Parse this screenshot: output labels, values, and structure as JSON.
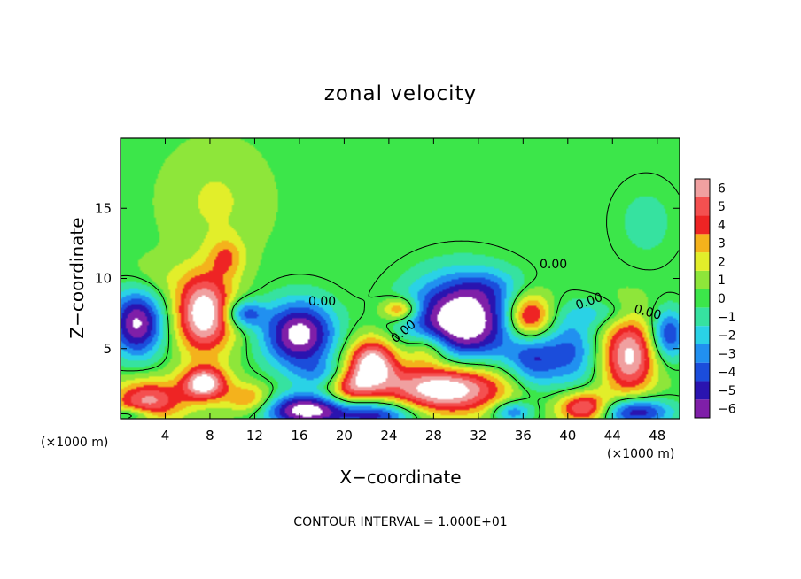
{
  "chart_data": {
    "type": "heatmap",
    "title": "zonal velocity",
    "xlabel": "X−coordinate",
    "ylabel": "Z−coordinate",
    "x_unit_label": "(×1000 m)",
    "y_unit_label": "(×1000 m)",
    "xlim": [
      0,
      50
    ],
    "ylim": [
      0,
      20
    ],
    "x_ticks": [
      4,
      8,
      12,
      16,
      20,
      24,
      28,
      32,
      36,
      40,
      44,
      48
    ],
    "y_ticks": [
      5,
      10,
      15
    ],
    "colorbar": {
      "levels": [
        -6,
        -5,
        -4,
        -3,
        -2,
        -1,
        0,
        1,
        2,
        3,
        4,
        5,
        6
      ],
      "colors": [
        "#7f1fa8",
        "#2a14b0",
        "#1b4ddb",
        "#2190f0",
        "#2ad2e6",
        "#36e2a0",
        "#3ce64a",
        "#8ee63a",
        "#e2ee2a",
        "#f4b21c",
        "#ee2424",
        "#f45050",
        "#f0a0a0"
      ]
    },
    "contour_labels": [
      "0.00",
      "0.00",
      "0.00",
      "0.00",
      "0.00"
    ],
    "footer": "CONTOUR INTERVAL = 1.000E+01",
    "blobs": [
      {
        "x": 1.5,
        "z": 6.8,
        "v": -7.0,
        "rx": 2.4,
        "rz": 2.4
      },
      {
        "x": 7.5,
        "z": 7.5,
        "v": 7.5,
        "rx": 2.6,
        "rz": 2.8
      },
      {
        "x": 7.5,
        "z": 2.5,
        "v": 7.0,
        "rx": 2.0,
        "rz": 1.2
      },
      {
        "x": 11.0,
        "z": 7.5,
        "v": -4.5,
        "rx": 1.8,
        "rz": 1.0
      },
      {
        "x": 16.0,
        "z": 6.0,
        "v": -7.5,
        "rx": 3.2,
        "rz": 2.4
      },
      {
        "x": 16.5,
        "z": 0.6,
        "v": -7.5,
        "rx": 3.8,
        "rz": 1.2
      },
      {
        "x": 11.5,
        "z": 1.4,
        "v": 3.5,
        "rx": 2.2,
        "rz": 1.1
      },
      {
        "x": 2.5,
        "z": 1.3,
        "v": 5.5,
        "rx": 3.2,
        "rz": 1.5
      },
      {
        "x": 1.0,
        "z": 0.3,
        "v": -3.0,
        "rx": 2.0,
        "rz": 0.5
      },
      {
        "x": 22.5,
        "z": 4.0,
        "v": 7.0,
        "rx": 2.2,
        "rz": 1.8
      },
      {
        "x": 20.5,
        "z": 2.2,
        "v": 4.0,
        "rx": 2.0,
        "rz": 1.3
      },
      {
        "x": 23.0,
        "z": 0.3,
        "v": -5.5,
        "rx": 3.5,
        "rz": 1.0
      },
      {
        "x": 25.0,
        "z": 7.8,
        "v": 4.5,
        "rx": 1.6,
        "rz": 0.8
      },
      {
        "x": 30.5,
        "z": 7.0,
        "v": -8.5,
        "rx": 4.8,
        "rz": 3.1
      },
      {
        "x": 29.0,
        "z": 2.2,
        "v": 8.0,
        "rx": 5.6,
        "rz": 1.8
      },
      {
        "x": 27.5,
        "z": 5.0,
        "v": 3.5,
        "rx": 2.0,
        "rz": 1.2
      },
      {
        "x": 36.5,
        "z": 7.2,
        "v": 6.5,
        "rx": 2.0,
        "rz": 1.7
      },
      {
        "x": 37.0,
        "z": 4.2,
        "v": -4.5,
        "rx": 2.4,
        "rz": 2.2
      },
      {
        "x": 35.0,
        "z": 0.5,
        "v": -4.0,
        "rx": 1.8,
        "rz": 0.8
      },
      {
        "x": 40.5,
        "z": 4.8,
        "v": -3.5,
        "rx": 2.2,
        "rz": 2.6
      },
      {
        "x": 41.5,
        "z": 0.8,
        "v": 6.0,
        "rx": 2.3,
        "rz": 1.1
      },
      {
        "x": 45.5,
        "z": 4.5,
        "v": 6.5,
        "rx": 2.4,
        "rz": 2.8
      },
      {
        "x": 46.0,
        "z": 0.5,
        "v": -6.0,
        "rx": 3.2,
        "rz": 1.0
      },
      {
        "x": 49.0,
        "z": 6.0,
        "v": -5.0,
        "rx": 1.6,
        "rz": 1.8
      },
      {
        "x": 43.0,
        "z": 7.5,
        "v": -1.8,
        "rx": 3.0,
        "rz": 1.0
      },
      {
        "x": 9.5,
        "z": 11.5,
        "v": 2.8,
        "rx": 1.6,
        "rz": 1.4
      },
      {
        "x": 8.5,
        "z": 15.5,
        "v": 1.4,
        "rx": 4.0,
        "rz": 3.5
      },
      {
        "x": 3.0,
        "z": 10.0,
        "v": 1.0,
        "rx": 3.0,
        "rz": 1.5
      },
      {
        "x": 18.0,
        "z": 3.2,
        "v": -2.2,
        "rx": 2.5,
        "rz": 1.0
      },
      {
        "x": 33.0,
        "z": 9.5,
        "v": -1.3,
        "rx": 3.0,
        "rz": 1.2
      },
      {
        "x": 47.0,
        "z": 14.0,
        "v": -1.2,
        "rx": 3.0,
        "rz": 3.0
      }
    ]
  }
}
